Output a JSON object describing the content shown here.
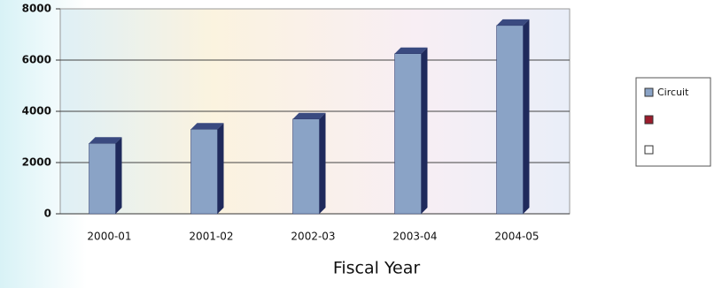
{
  "chart_data": {
    "type": "bar",
    "x_label": "Fiscal Year",
    "categories": [
      "2000-01",
      "2001-02",
      "2002-03",
      "2003-04",
      "2004-05"
    ],
    "series": [
      {
        "name": "Circuit",
        "color": "#8aa3c6",
        "values": [
          2750,
          3300,
          3700,
          6250,
          7350
        ]
      }
    ],
    "ylim": [
      0,
      8000
    ],
    "yticks": [
      0,
      2000,
      4000,
      6000,
      8000
    ],
    "grid": true
  }
}
